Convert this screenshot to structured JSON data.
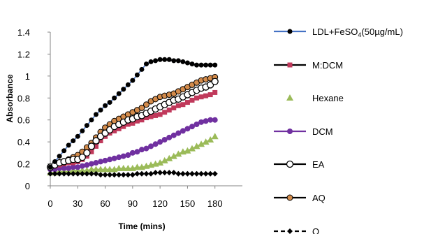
{
  "chart_data": {
    "type": "line",
    "title": "",
    "xlabel": "Time (mins)",
    "ylabel": "Absorbance",
    "xlim": [
      0,
      210
    ],
    "ylim": [
      0,
      1.4
    ],
    "xticks": [
      "0",
      "30",
      "60",
      "90",
      "120",
      "150",
      "180"
    ],
    "yticks": [
      "0",
      "0.2",
      "0.4",
      "0.6",
      "0.8",
      "1",
      "1.2",
      "1.4"
    ],
    "grid": false,
    "legend_position": "right",
    "series": [
      {
        "name": "LDL+FeSO4(50µg/mL)",
        "color": "#4472C4",
        "marker": "filled-circle-black",
        "marker_color": "#000000",
        "x": [
          0,
          5,
          10,
          15,
          20,
          25,
          30,
          35,
          40,
          45,
          50,
          55,
          60,
          65,
          70,
          75,
          80,
          85,
          90,
          95,
          100,
          105,
          110,
          115,
          120,
          125,
          130,
          135,
          140,
          145,
          150,
          155,
          160,
          165,
          170,
          175,
          180
        ],
        "y": [
          0.17,
          0.22,
          0.27,
          0.32,
          0.37,
          0.41,
          0.45,
          0.5,
          0.55,
          0.6,
          0.65,
          0.69,
          0.73,
          0.76,
          0.8,
          0.84,
          0.88,
          0.92,
          0.96,
          1.01,
          1.06,
          1.11,
          1.13,
          1.14,
          1.15,
          1.15,
          1.15,
          1.14,
          1.14,
          1.13,
          1.12,
          1.11,
          1.1,
          1.1,
          1.1,
          1.1,
          1.1
        ]
      },
      {
        "name": "M:DCM",
        "color": "#000000",
        "marker": "square",
        "marker_color": "#C0395B",
        "x": [
          0,
          5,
          10,
          15,
          20,
          25,
          30,
          35,
          40,
          45,
          50,
          55,
          60,
          65,
          70,
          75,
          80,
          85,
          90,
          95,
          100,
          105,
          110,
          115,
          120,
          125,
          130,
          135,
          140,
          145,
          150,
          155,
          160,
          165,
          170,
          175,
          180
        ],
        "y": [
          0.17,
          0.18,
          0.19,
          0.2,
          0.21,
          0.21,
          0.22,
          0.24,
          0.27,
          0.31,
          0.36,
          0.41,
          0.45,
          0.48,
          0.5,
          0.52,
          0.54,
          0.56,
          0.57,
          0.59,
          0.6,
          0.62,
          0.63,
          0.64,
          0.65,
          0.67,
          0.69,
          0.71,
          0.73,
          0.74,
          0.76,
          0.78,
          0.8,
          0.81,
          0.82,
          0.83,
          0.85
        ]
      },
      {
        "name": "Hexane",
        "color": "#9BBB59",
        "marker": "triangle",
        "marker_color": "#9BBB59",
        "x": [
          0,
          5,
          10,
          15,
          20,
          25,
          30,
          35,
          40,
          45,
          50,
          55,
          60,
          65,
          70,
          75,
          80,
          85,
          90,
          95,
          100,
          105,
          110,
          115,
          120,
          125,
          130,
          135,
          140,
          145,
          150,
          155,
          160,
          165,
          170,
          175,
          180
        ],
        "y": [
          0.12,
          0.12,
          0.13,
          0.13,
          0.13,
          0.14,
          0.14,
          0.14,
          0.14,
          0.15,
          0.15,
          0.15,
          0.15,
          0.15,
          0.15,
          0.16,
          0.16,
          0.16,
          0.16,
          0.17,
          0.17,
          0.18,
          0.19,
          0.2,
          0.21,
          0.23,
          0.25,
          0.27,
          0.29,
          0.31,
          0.32,
          0.34,
          0.36,
          0.38,
          0.4,
          0.42,
          0.45
        ]
      },
      {
        "name": "DCM",
        "color": "#7030A0",
        "marker": "filled-circle",
        "marker_color": "#7030A0",
        "x": [
          0,
          5,
          10,
          15,
          20,
          25,
          30,
          35,
          40,
          45,
          50,
          55,
          60,
          65,
          70,
          75,
          80,
          85,
          90,
          95,
          100,
          105,
          110,
          115,
          120,
          125,
          130,
          135,
          140,
          145,
          150,
          155,
          160,
          165,
          170,
          175,
          180
        ],
        "y": [
          0.15,
          0.15,
          0.16,
          0.16,
          0.16,
          0.17,
          0.17,
          0.18,
          0.19,
          0.2,
          0.21,
          0.22,
          0.23,
          0.24,
          0.25,
          0.26,
          0.27,
          0.28,
          0.3,
          0.31,
          0.33,
          0.34,
          0.36,
          0.38,
          0.4,
          0.42,
          0.44,
          0.46,
          0.48,
          0.5,
          0.52,
          0.54,
          0.56,
          0.58,
          0.59,
          0.6,
          0.6
        ]
      },
      {
        "name": "EA",
        "color": "#000000",
        "marker": "open-circle",
        "marker_color": "#000000",
        "x": [
          0,
          5,
          10,
          15,
          20,
          25,
          30,
          35,
          40,
          45,
          50,
          55,
          60,
          65,
          70,
          75,
          80,
          85,
          90,
          95,
          100,
          105,
          110,
          115,
          120,
          125,
          130,
          135,
          140,
          145,
          150,
          155,
          160,
          165,
          170,
          175,
          180
        ],
        "y": [
          0.17,
          0.19,
          0.21,
          0.22,
          0.23,
          0.24,
          0.24,
          0.26,
          0.3,
          0.36,
          0.41,
          0.45,
          0.48,
          0.51,
          0.54,
          0.56,
          0.58,
          0.6,
          0.61,
          0.63,
          0.64,
          0.66,
          0.68,
          0.7,
          0.72,
          0.74,
          0.76,
          0.78,
          0.79,
          0.81,
          0.83,
          0.85,
          0.87,
          0.89,
          0.9,
          0.92,
          0.95
        ]
      },
      {
        "name": "AQ",
        "color": "#000000",
        "marker": "filled-circle",
        "marker_color": "#D38B4B",
        "x": [
          0,
          5,
          10,
          15,
          20,
          25,
          30,
          35,
          40,
          45,
          50,
          55,
          60,
          65,
          70,
          75,
          80,
          85,
          90,
          95,
          100,
          105,
          110,
          115,
          120,
          125,
          130,
          135,
          140,
          145,
          150,
          155,
          160,
          165,
          170,
          175,
          180
        ],
        "y": [
          0.17,
          0.19,
          0.21,
          0.22,
          0.24,
          0.26,
          0.28,
          0.31,
          0.35,
          0.39,
          0.44,
          0.49,
          0.53,
          0.56,
          0.59,
          0.61,
          0.63,
          0.65,
          0.67,
          0.69,
          0.71,
          0.74,
          0.77,
          0.79,
          0.81,
          0.82,
          0.83,
          0.84,
          0.86,
          0.88,
          0.9,
          0.92,
          0.94,
          0.96,
          0.97,
          0.98,
          0.99
        ]
      },
      {
        "name": "Q",
        "color": "#000000",
        "marker": "diamond",
        "marker_color": "#000000",
        "dashed": true,
        "x": [
          0,
          5,
          10,
          15,
          20,
          25,
          30,
          35,
          40,
          45,
          50,
          55,
          60,
          65,
          70,
          75,
          80,
          85,
          90,
          95,
          100,
          105,
          110,
          115,
          120,
          125,
          130,
          135,
          140,
          145,
          150,
          155,
          160,
          165,
          170,
          175,
          180
        ],
        "y": [
          0.11,
          0.11,
          0.11,
          0.11,
          0.11,
          0.11,
          0.11,
          0.11,
          0.11,
          0.11,
          0.11,
          0.1,
          0.1,
          0.1,
          0.1,
          0.1,
          0.1,
          0.1,
          0.1,
          0.11,
          0.11,
          0.11,
          0.11,
          0.12,
          0.12,
          0.12,
          0.12,
          0.12,
          0.11,
          0.11,
          0.11,
          0.11,
          0.11,
          0.11,
          0.11,
          0.11,
          0.11
        ]
      }
    ]
  }
}
